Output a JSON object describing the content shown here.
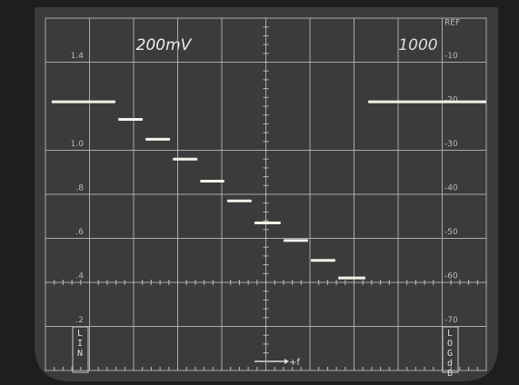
{
  "chart_data": {
    "type": "step",
    "annotations": {
      "volts": "200mV",
      "rate": "1000",
      "lin": "LIN",
      "log": "LOG dB",
      "freq": "+f"
    },
    "x": [
      0.14,
      1.65,
      2.27,
      2.89,
      3.51,
      4.12,
      4.74,
      5.4,
      6.02,
      6.64,
      7.32
    ],
    "values": [
      1.22,
      1.14,
      1.05,
      0.96,
      0.86,
      0.77,
      0.67,
      0.59,
      0.5,
      0.42,
      1.22
    ],
    "color": "#f2f2ea",
    "xlim": [
      0,
      10
    ],
    "xticks": [
      0,
      1,
      2,
      3,
      4,
      5,
      6,
      7,
      8,
      9,
      10
    ],
    "ylim": [
      0,
      1.6
    ],
    "yticks": [
      {
        "value": 1.4,
        "label": "1.4"
      },
      {
        "value": 1.0,
        "label": "1.0"
      },
      {
        "value": 0.8,
        "label": ".8"
      },
      {
        "value": 0.6,
        "label": ".6"
      },
      {
        "value": 0.4,
        "label": ".4"
      },
      {
        "value": 0.2,
        "label": ".2"
      }
    ],
    "y2lim": [
      -80,
      0
    ],
    "y2ticks": [
      {
        "value": 0,
        "label": "REF"
      },
      -10,
      -20,
      -30,
      -40,
      -50,
      -60,
      -70
    ],
    "grid": true
  }
}
